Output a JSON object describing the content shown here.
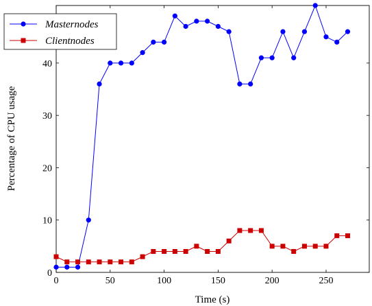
{
  "chart_data": {
    "type": "line",
    "xlabel": "Time (s)",
    "ylabel": "Percentage of CPU usage",
    "xlim": [
      0,
      290
    ],
    "ylim": [
      0,
      51
    ],
    "xticks": [
      0,
      50,
      100,
      150,
      200,
      250
    ],
    "yticks": [
      0,
      10,
      20,
      30,
      40
    ],
    "grid": false,
    "legend_position": "top-left",
    "x": [
      0,
      10,
      20,
      30,
      40,
      50,
      60,
      70,
      80,
      90,
      100,
      110,
      120,
      130,
      140,
      150,
      160,
      170,
      180,
      190,
      200,
      210,
      220,
      230,
      240,
      250,
      260,
      270
    ],
    "series": [
      {
        "name": "Masternodes",
        "color": "#0000ff",
        "marker": "circle",
        "values": [
          1,
          1,
          1,
          10,
          36,
          40,
          40,
          40,
          42,
          44,
          44,
          49,
          47,
          48,
          48,
          47,
          46,
          36,
          36,
          41,
          41,
          46,
          41,
          46,
          51,
          45,
          44,
          46
        ]
      },
      {
        "name": "Clientnodes",
        "color": "#cc0000",
        "marker": "square",
        "values": [
          3,
          2,
          2,
          2,
          2,
          2,
          2,
          2,
          3,
          4,
          4,
          4,
          4,
          5,
          4,
          4,
          6,
          8,
          8,
          8,
          5,
          5,
          4,
          5,
          5,
          5,
          7,
          7
        ]
      }
    ]
  }
}
